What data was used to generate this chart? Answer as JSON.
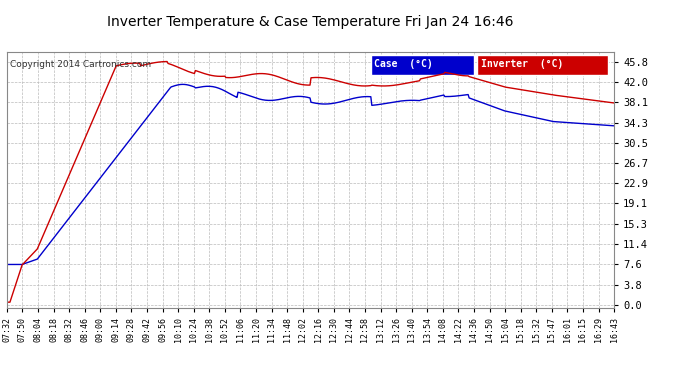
{
  "title": "Inverter Temperature & Case Temperature Fri Jan 24 16:46",
  "copyright": "Copyright 2014 Cartronics.com",
  "background_color": "#ffffff",
  "plot_bg_color": "#ffffff",
  "grid_color": "#bbbbbb",
  "case_color": "#0000cc",
  "inverter_color": "#cc0000",
  "legend_case_label": "Case  (°C)",
  "legend_inverter_label": "Inverter  (°C)",
  "legend_case_bg": "#0000cc",
  "legend_inv_bg": "#cc0000",
  "yticks": [
    0.0,
    3.8,
    7.6,
    11.4,
    15.3,
    19.1,
    22.9,
    26.7,
    30.5,
    34.3,
    38.1,
    42.0,
    45.8
  ],
  "ylim": [
    -0.5,
    47.5
  ],
  "xtick_labels": [
    "07:32",
    "07:50",
    "08:04",
    "08:18",
    "08:32",
    "08:46",
    "09:00",
    "09:14",
    "09:28",
    "09:42",
    "09:56",
    "10:10",
    "10:24",
    "10:38",
    "10:52",
    "11:06",
    "11:20",
    "11:34",
    "11:48",
    "12:02",
    "12:16",
    "12:30",
    "12:44",
    "12:58",
    "13:12",
    "13:26",
    "13:40",
    "13:54",
    "14:08",
    "14:22",
    "14:36",
    "14:50",
    "15:04",
    "15:18",
    "15:32",
    "15:47",
    "16:01",
    "16:15",
    "16:29",
    "16:43"
  ]
}
